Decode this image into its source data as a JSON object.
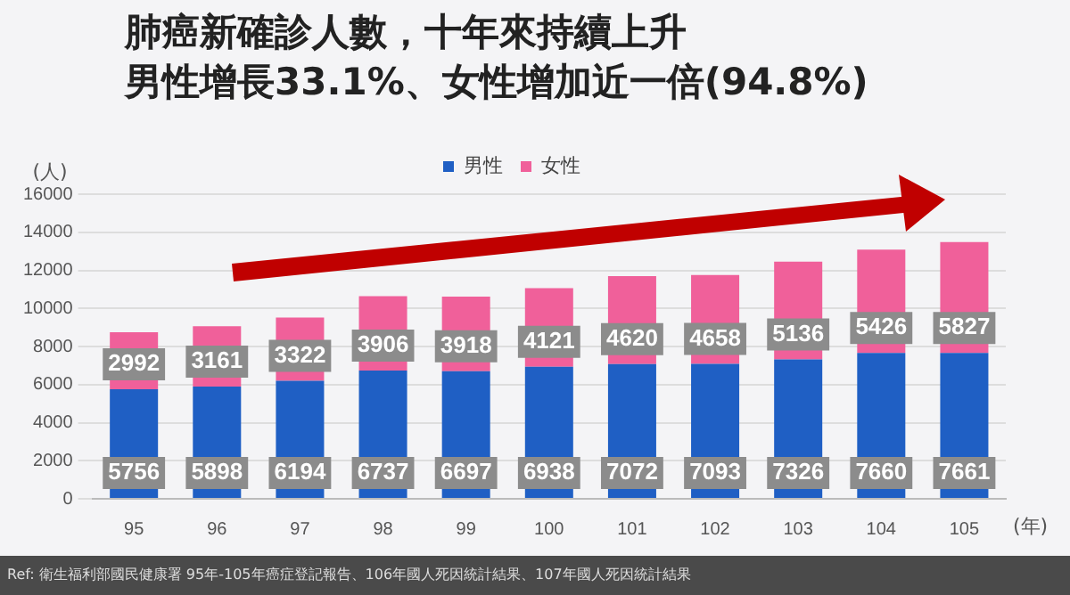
{
  "chart_data": {
    "type": "bar",
    "title": "肺癌新確診人數，十年來持續上升",
    "subtitle": "男性增長33.1%、女性增加近一倍(94.8%)",
    "xlabel": "(年)",
    "ylabel": "(人)",
    "categories": [
      "95",
      "96",
      "97",
      "98",
      "99",
      "100",
      "101",
      "102",
      "103",
      "104",
      "105"
    ],
    "series": [
      {
        "name": "男性",
        "color": "#1f5fc4",
        "values": [
          5756,
          5898,
          6194,
          6737,
          6697,
          6938,
          7072,
          7093,
          7326,
          7660,
          7661
        ]
      },
      {
        "name": "女性",
        "color": "#f0609a",
        "values": [
          2992,
          3161,
          3322,
          3906,
          3918,
          4121,
          4620,
          4658,
          5136,
          5426,
          5827
        ]
      }
    ],
    "stacked": true,
    "data_labels": true,
    "ylim": [
      0,
      16000
    ],
    "yticks": [
      0,
      2000,
      4000,
      6000,
      8000,
      10000,
      12000,
      14000,
      16000
    ],
    "grid": "y",
    "legend": "top",
    "annotations": [
      "Ref: 衛生福利部國民健康署 95年-105年癌症登記報告、106年國人死因統計結果、107年國人死因統計結果"
    ]
  }
}
